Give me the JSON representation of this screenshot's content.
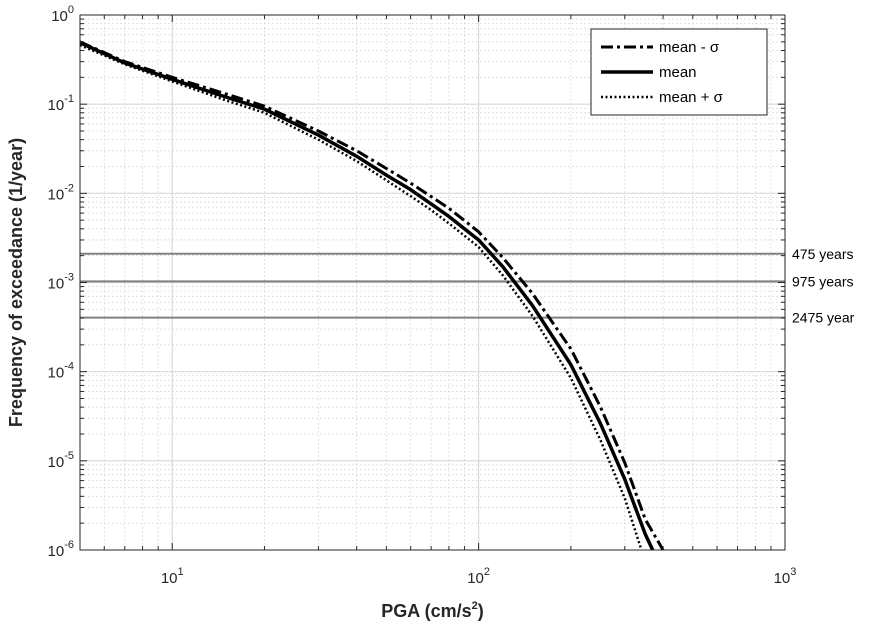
{
  "chart_data": {
    "type": "line",
    "xlabel": "PGA (cm/s",
    "xlabel_sup": "2",
    "xlabel_close": ")",
    "ylabel": "Frequency of exceedance (1/year)",
    "xscale": "log",
    "yscale": "log",
    "xlim": [
      5,
      1000
    ],
    "ylim": [
      1e-06,
      1
    ],
    "grid": "on",
    "legend_position": "top-right",
    "x_ticks": [
      {
        "base": "10",
        "exp": "1",
        "value": 10
      },
      {
        "base": "10",
        "exp": "2",
        "value": 100
      },
      {
        "base": "10",
        "exp": "3",
        "value": 1000
      }
    ],
    "y_ticks": [
      {
        "base": "10",
        "exp": "0",
        "value": 1
      },
      {
        "base": "10",
        "exp": "-1",
        "value": 0.1
      },
      {
        "base": "10",
        "exp": "-2",
        "value": 0.01
      },
      {
        "base": "10",
        "exp": "-3",
        "value": 0.001
      },
      {
        "base": "10",
        "exp": "-4",
        "value": 0.0001
      },
      {
        "base": "10",
        "exp": "-5",
        "value": 1e-05
      },
      {
        "base": "10",
        "exp": "-6",
        "value": 1e-06
      }
    ],
    "series": [
      {
        "name": "mean - σ",
        "style": "dashdot",
        "color": "#000000",
        "x": [
          5,
          7,
          10,
          15,
          20,
          30,
          40,
          50,
          60,
          70,
          80,
          100,
          120,
          150,
          200,
          250,
          300,
          350,
          400
        ],
        "y": [
          0.5,
          0.3,
          0.2,
          0.13,
          0.095,
          0.05,
          0.03,
          0.019,
          0.013,
          0.0092,
          0.0068,
          0.0037,
          0.0019,
          0.00075,
          0.00018,
          4e-05,
          9.5e-06,
          2.2e-06,
          1e-06
        ]
      },
      {
        "name": "mean",
        "style": "solid",
        "color": "#000000",
        "x": [
          5,
          7,
          10,
          15,
          20,
          30,
          40,
          50,
          60,
          70,
          80,
          100,
          120,
          150,
          200,
          250,
          300,
          350,
          370
        ],
        "y": [
          0.49,
          0.29,
          0.19,
          0.12,
          0.088,
          0.045,
          0.026,
          0.016,
          0.011,
          0.0076,
          0.0055,
          0.003,
          0.0015,
          0.00055,
          0.00012,
          2.6e-05,
          6.2e-06,
          1.5e-06,
          1e-06
        ]
      },
      {
        "name": "mean + σ",
        "style": "dotted",
        "color": "#000000",
        "x": [
          5,
          7,
          10,
          15,
          20,
          30,
          40,
          50,
          60,
          70,
          80,
          100,
          120,
          150,
          200,
          250,
          300,
          340
        ],
        "y": [
          0.46,
          0.28,
          0.18,
          0.11,
          0.08,
          0.04,
          0.023,
          0.014,
          0.0093,
          0.0065,
          0.0046,
          0.0025,
          0.0012,
          0.00042,
          8.5e-05,
          1.7e-05,
          3.8e-06,
          1e-06
        ]
      }
    ],
    "reference_lines": [
      {
        "label": "475 years",
        "y": 0.0021,
        "color": "#808080"
      },
      {
        "label": "975 years",
        "y": 0.00103,
        "color": "#808080"
      },
      {
        "label": "2475 year",
        "y": 0.000404,
        "color": "#808080"
      }
    ]
  }
}
